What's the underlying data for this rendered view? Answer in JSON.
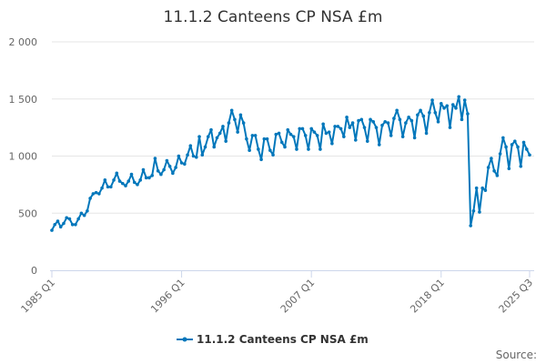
{
  "chart_data": {
    "type": "line",
    "title": "11.1.2 Canteens CP NSA £m",
    "xlabel": "",
    "ylabel": "",
    "ylim": [
      0,
      2000
    ],
    "yticks": [
      0,
      500,
      1000,
      1500,
      2000
    ],
    "ytick_labels": [
      "0",
      "500",
      "1 000",
      "1 500",
      "2 000"
    ],
    "xtick_labels": [
      "1985 Q1",
      "1996 Q1",
      "2007 Q1",
      "2018 Q1",
      "2025 Q3"
    ],
    "grid": "horizontal",
    "legend_position": "bottom",
    "source_label": "Source:",
    "color": "#0077bb",
    "categories": [
      "1985 Q1",
      "1985 Q2",
      "1985 Q3",
      "1985 Q4",
      "1986 Q1",
      "1986 Q2",
      "1986 Q3",
      "1986 Q4",
      "1987 Q1",
      "1987 Q2",
      "1987 Q3",
      "1987 Q4",
      "1988 Q1",
      "1988 Q2",
      "1988 Q3",
      "1988 Q4",
      "1989 Q1",
      "1989 Q2",
      "1989 Q3",
      "1989 Q4",
      "1990 Q1",
      "1990 Q2",
      "1990 Q3",
      "1990 Q4",
      "1991 Q1",
      "1991 Q2",
      "1991 Q3",
      "1991 Q4",
      "1992 Q1",
      "1992 Q2",
      "1992 Q3",
      "1992 Q4",
      "1993 Q1",
      "1993 Q2",
      "1993 Q3",
      "1993 Q4",
      "1994 Q1",
      "1994 Q2",
      "1994 Q3",
      "1994 Q4",
      "1995 Q1",
      "1995 Q2",
      "1995 Q3",
      "1995 Q4",
      "1996 Q1",
      "1996 Q2",
      "1996 Q3",
      "1996 Q4",
      "1997 Q1",
      "1997 Q2",
      "1997 Q3",
      "1997 Q4",
      "1998 Q1",
      "1998 Q2",
      "1998 Q3",
      "1998 Q4",
      "1999 Q1",
      "1999 Q2",
      "1999 Q3",
      "1999 Q4",
      "2000 Q1",
      "2000 Q2",
      "2000 Q3",
      "2000 Q4",
      "2001 Q1",
      "2001 Q2",
      "2001 Q3",
      "2001 Q4",
      "2002 Q1",
      "2002 Q2",
      "2002 Q3",
      "2002 Q4",
      "2003 Q1",
      "2003 Q2",
      "2003 Q3",
      "2003 Q4",
      "2004 Q1",
      "2004 Q2",
      "2004 Q3",
      "2004 Q4",
      "2005 Q1",
      "2005 Q2",
      "2005 Q3",
      "2005 Q4",
      "2006 Q1",
      "2006 Q2",
      "2006 Q3",
      "2006 Q4",
      "2007 Q1",
      "2007 Q2",
      "2007 Q3",
      "2007 Q4",
      "2008 Q1",
      "2008 Q2",
      "2008 Q3",
      "2008 Q4",
      "2009 Q1",
      "2009 Q2",
      "2009 Q3",
      "2009 Q4",
      "2010 Q1",
      "2010 Q2",
      "2010 Q3",
      "2010 Q4",
      "2011 Q1",
      "2011 Q2",
      "2011 Q3",
      "2011 Q4",
      "2012 Q1",
      "2012 Q2",
      "2012 Q3",
      "2012 Q4",
      "2013 Q1",
      "2013 Q2",
      "2013 Q3",
      "2013 Q4",
      "2014 Q1",
      "2014 Q2",
      "2014 Q3",
      "2014 Q4",
      "2015 Q1",
      "2015 Q2",
      "2015 Q3",
      "2015 Q4",
      "2016 Q1",
      "2016 Q2",
      "2016 Q3",
      "2016 Q4",
      "2017 Q1",
      "2017 Q2",
      "2017 Q3",
      "2017 Q4",
      "2018 Q1",
      "2018 Q2",
      "2018 Q3",
      "2018 Q4",
      "2019 Q1",
      "2019 Q2",
      "2019 Q3",
      "2019 Q4",
      "2020 Q1",
      "2020 Q2",
      "2020 Q3",
      "2020 Q4",
      "2021 Q1",
      "2021 Q2",
      "2021 Q3",
      "2021 Q4",
      "2022 Q1",
      "2022 Q2",
      "2022 Q3",
      "2022 Q4",
      "2023 Q1",
      "2023 Q2",
      "2023 Q3",
      "2023 Q4",
      "2024 Q1",
      "2024 Q2",
      "2024 Q3",
      "2024 Q4",
      "2025 Q1",
      "2025 Q2",
      "2025 Q3"
    ],
    "series": [
      {
        "name": "11.1.2 Canteens CP NSA £m",
        "values": [
          350,
          400,
          430,
          380,
          410,
          460,
          450,
          400,
          400,
          450,
          500,
          480,
          520,
          630,
          670,
          680,
          670,
          720,
          790,
          730,
          730,
          790,
          850,
          780,
          760,
          740,
          780,
          840,
          770,
          750,
          790,
          880,
          810,
          810,
          830,
          980,
          870,
          840,
          880,
          960,
          910,
          850,
          900,
          1000,
          940,
          930,
          1010,
          1090,
          1000,
          990,
          1170,
          1010,
          1080,
          1170,
          1230,
          1080,
          1160,
          1200,
          1260,
          1130,
          1290,
          1400,
          1320,
          1210,
          1360,
          1290,
          1150,
          1050,
          1180,
          1180,
          1060,
          970,
          1150,
          1150,
          1050,
          1010,
          1190,
          1200,
          1120,
          1080,
          1230,
          1190,
          1170,
          1060,
          1240,
          1240,
          1180,
          1060,
          1240,
          1210,
          1180,
          1060,
          1280,
          1200,
          1210,
          1110,
          1260,
          1260,
          1240,
          1170,
          1340,
          1250,
          1290,
          1140,
          1310,
          1320,
          1250,
          1130,
          1320,
          1300,
          1250,
          1100,
          1270,
          1300,
          1290,
          1180,
          1330,
          1400,
          1320,
          1170,
          1290,
          1340,
          1310,
          1160,
          1360,
          1400,
          1350,
          1200,
          1380,
          1490,
          1380,
          1300,
          1460,
          1420,
          1440,
          1250,
          1450,
          1420,
          1520,
          1320,
          1490,
          1370,
          390,
          520,
          720,
          510,
          720,
          700,
          900,
          980,
          870,
          830,
          1020,
          1160,
          1080,
          890,
          1100,
          1130,
          1080,
          910,
          1120,
          1060,
          1010
        ]
      }
    ]
  }
}
